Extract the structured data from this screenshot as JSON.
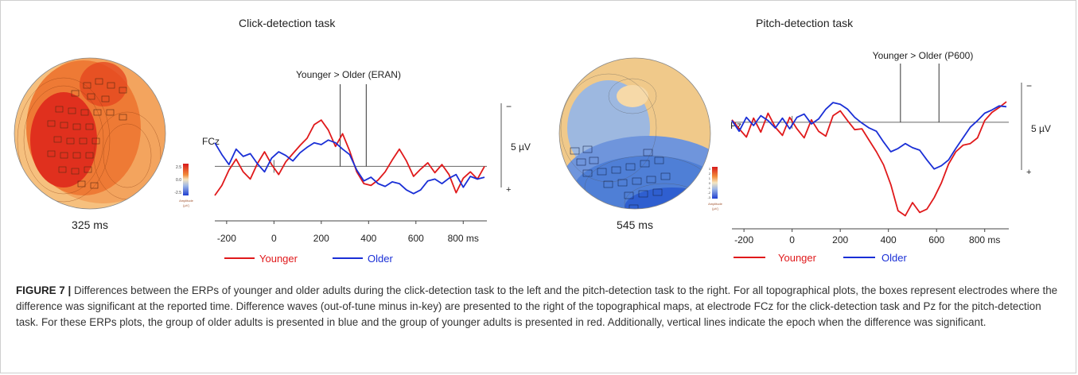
{
  "figure": {
    "left_panel_title": "Click-detection task",
    "right_panel_title": "Pitch-detection task",
    "caption_label": "FIGURE 7 |",
    "caption_text": "Differences between the ERPs of younger and older adults during the click-detection task to the left and the pitch-detection task to the right. For all topographical plots, the boxes represent electrodes where the difference was significant at the reported time. Difference waves (out-of-tune minus in-key) are presented to the right of the topographical maps, at electrode FCz for the click-detection task and Pz for the pitch-detection task. For these ERPs plots, the group of older adults is presented in blue and the group of younger adults is presented in red. Additionally, vertical lines indicate the epoch when the difference was significant."
  },
  "topomaps": [
    {
      "id": "click",
      "time_label": "325 ms",
      "colorbar_ticks": [
        "2.5",
        "0.0",
        "-2.5"
      ],
      "colorbar_title": "Amplitude",
      "colorbar_unit": "[µV]",
      "colors": {
        "hot": "#e0301e",
        "mid": "#ee7a35",
        "cool": "#f3a45e",
        "edge": "#f6c07e"
      }
    },
    {
      "id": "pitch",
      "time_label": "545 ms",
      "colorbar_ticks": [
        "3",
        "2",
        "1",
        "0",
        "-1",
        "-2",
        "-3"
      ],
      "colorbar_title": "Amplitude",
      "colorbar_unit": "[µV]",
      "colors": {
        "hot": "#f0c98a",
        "mid": "#9db8e0",
        "cool": "#4f7fd6",
        "edge": "#2f5fd0"
      }
    }
  ],
  "chart_data": [
    {
      "type": "line",
      "electrode": "FCz",
      "annotation": "Younger > Older (ERAN)",
      "annotation_epoch_ms": [
        280,
        390
      ],
      "scale_label": "5 µV",
      "scale_signs": [
        "−",
        "+"
      ],
      "x_ticks": [
        "-200",
        "0",
        "200",
        "400",
        "600",
        "800 ms"
      ],
      "x_tick_values": [
        -200,
        0,
        200,
        400,
        600,
        800
      ],
      "xlim": [
        -250,
        900
      ],
      "ylim": [
        -6,
        8
      ],
      "x": [
        -250,
        -220,
        -190,
        -160,
        -130,
        -100,
        -70,
        -40,
        -10,
        20,
        50,
        80,
        110,
        140,
        170,
        200,
        230,
        260,
        290,
        320,
        350,
        380,
        410,
        440,
        470,
        500,
        530,
        560,
        590,
        620,
        650,
        680,
        710,
        740,
        770,
        800,
        830,
        860,
        890
      ],
      "series": [
        {
          "name": "Younger",
          "color": "#e0191b",
          "values": [
            -3.2,
            -2.1,
            -0.4,
            0.8,
            -0.6,
            -1.4,
            0.3,
            1.6,
            0.2,
            -0.9,
            0.5,
            1.4,
            2.3,
            3.1,
            4.6,
            5.1,
            4.0,
            2.2,
            3.6,
            1.7,
            -0.6,
            -1.9,
            -2.1,
            -1.5,
            -0.6,
            0.7,
            1.9,
            0.6,
            -1.1,
            -0.3,
            0.4,
            -0.7,
            0.2,
            -0.9,
            -2.9,
            -1.3,
            -0.6,
            -1.4,
            0.0
          ]
        },
        {
          "name": "Older",
          "color": "#1a2fd6",
          "values": [
            2.6,
            1.3,
            0.2,
            1.9,
            1.1,
            1.4,
            0.3,
            -0.6,
            0.9,
            1.6,
            1.2,
            0.6,
            1.5,
            2.1,
            2.6,
            2.4,
            2.9,
            2.6,
            1.9,
            1.3,
            -0.4,
            -1.6,
            -1.2,
            -1.9,
            -2.2,
            -1.7,
            -1.9,
            -2.6,
            -3.0,
            -2.6,
            -1.6,
            -1.4,
            -1.9,
            -1.3,
            -0.9,
            -2.3,
            -1.1,
            -1.4,
            -1.2
          ]
        }
      ]
    },
    {
      "type": "line",
      "electrode": "Pz",
      "annotation": "Younger > Older (P600)",
      "annotation_epoch_ms": [
        450,
        610
      ],
      "scale_label": "5 µV",
      "scale_signs": [
        "−",
        "+"
      ],
      "x_ticks": [
        "-200",
        "0",
        "200",
        "400",
        "600",
        "800 ms"
      ],
      "x_tick_values": [
        -200,
        0,
        200,
        400,
        600,
        800
      ],
      "xlim": [
        -250,
        900
      ],
      "ylim": [
        -13,
        6
      ],
      "x": [
        -250,
        -220,
        -190,
        -160,
        -130,
        -100,
        -70,
        -40,
        -10,
        20,
        50,
        80,
        110,
        140,
        170,
        200,
        230,
        260,
        290,
        320,
        350,
        380,
        410,
        440,
        470,
        500,
        530,
        560,
        590,
        620,
        650,
        680,
        710,
        740,
        770,
        800,
        830,
        860,
        890
      ],
      "series": [
        {
          "name": "Younger",
          "color": "#e0191b",
          "values": [
            0.3,
            -0.8,
            -1.8,
            0.5,
            -1.2,
            1.1,
            -0.6,
            -1.6,
            0.6,
            -0.8,
            -1.9,
            0.3,
            -1.1,
            -1.7,
            0.8,
            1.4,
            0.2,
            -0.9,
            -0.8,
            -2.2,
            -3.6,
            -5.2,
            -7.6,
            -10.8,
            -11.4,
            -9.8,
            -11.0,
            -10.6,
            -9.2,
            -7.4,
            -5.1,
            -3.6,
            -2.8,
            -2.6,
            -1.9,
            0.2,
            1.2,
            1.8,
            2.5
          ]
        },
        {
          "name": "Older",
          "color": "#1a2fd6",
          "values": [
            0.2,
            -1.1,
            0.6,
            -0.4,
            0.8,
            0.2,
            -0.7,
            0.5,
            -0.8,
            0.6,
            1.0,
            -0.2,
            0.4,
            1.6,
            2.4,
            2.2,
            1.6,
            0.6,
            -0.1,
            -0.7,
            -1.1,
            -2.4,
            -3.6,
            -3.2,
            -2.6,
            -3.1,
            -3.4,
            -4.6,
            -5.7,
            -5.3,
            -4.6,
            -3.2,
            -1.9,
            -0.6,
            0.2,
            1.1,
            1.5,
            2.0,
            1.9
          ]
        }
      ]
    }
  ]
}
